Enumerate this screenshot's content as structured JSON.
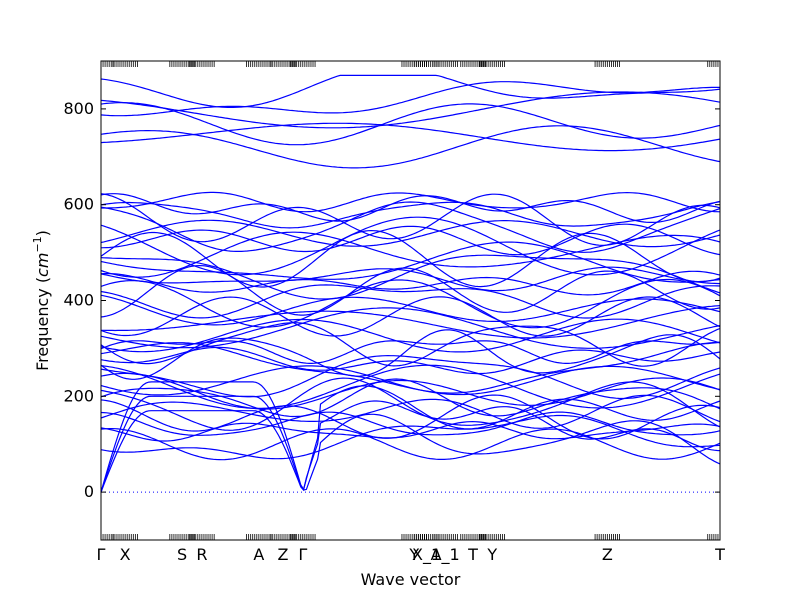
{
  "chart_data": {
    "type": "line",
    "title": "",
    "xlabel": "Wave vector",
    "ylabel_text": "Frequency (",
    "ylabel_unit": "cm",
    "ylabel_exp": "−1",
    "ylabel_close": ")",
    "ylim": [
      -100,
      900
    ],
    "yticks": [
      0,
      200,
      400,
      600,
      800
    ],
    "path_x_range": [
      0,
      1
    ],
    "grid": false,
    "line_color": "#0000ff",
    "zero_line_color": "#0000ff",
    "high_symmetry_points": [
      {
        "label": "Γ",
        "x": 0.0
      },
      {
        "label": "X",
        "x": 0.039
      },
      {
        "label": "S",
        "x": 0.131
      },
      {
        "label": "R",
        "x": 0.163
      },
      {
        "label": "A",
        "x": 0.255
      },
      {
        "label": "Z",
        "x": 0.294
      },
      {
        "label": "Γ",
        "x": 0.326
      },
      {
        "label": "Y",
        "x": 0.506
      },
      {
        "label": "X_1",
        "x": 0.526
      },
      {
        "label": "A_1",
        "x": 0.556
      },
      {
        "label": "T",
        "x": 0.601
      },
      {
        "label": "Y",
        "x": 0.632
      },
      {
        "label": "Z",
        "x": 0.818
      },
      {
        "label": "T",
        "x": 1.0
      }
    ],
    "series_note_bands": 48
  }
}
